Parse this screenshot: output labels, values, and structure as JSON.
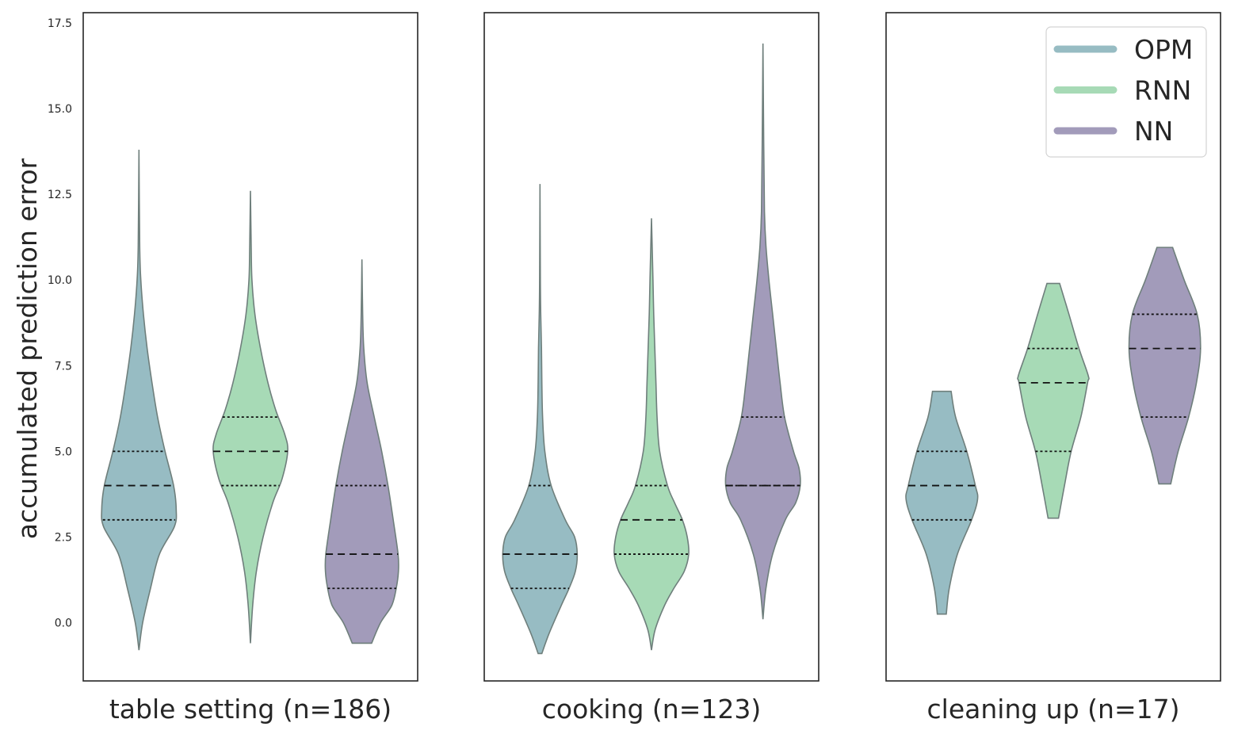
{
  "chart_data": {
    "type": "violin",
    "ylabel": "accumulated prediction error",
    "ylim": [
      -1.7,
      17.8
    ],
    "yticks": [
      "0.0",
      "2.5",
      "5.0",
      "7.5",
      "10.0",
      "12.5",
      "15.0",
      "17.5"
    ],
    "inner": "quartile",
    "shared_y": true,
    "legend": {
      "placement": "top-right",
      "entries": [
        {
          "name": "OPM",
          "color": "#97bcc3"
        },
        {
          "name": "RNN",
          "color": "#a7dab6"
        },
        {
          "name": "NN",
          "color": "#a29bba"
        }
      ]
    },
    "panels": [
      {
        "xlabel": "table setting (n=186)",
        "violins": [
          {
            "series": "OPM",
            "quartiles": [
              3.0,
              4.0,
              5.0
            ],
            "profile": [
              [
                -0.8,
                0.0
              ],
              [
                0.0,
                0.1
              ],
              [
                1.0,
                0.31
              ],
              [
                2.0,
                0.55
              ],
              [
                2.8,
                0.95
              ],
              [
                3.3,
                1.0
              ],
              [
                4.0,
                0.93
              ],
              [
                5.0,
                0.7
              ],
              [
                6.0,
                0.5
              ],
              [
                7.0,
                0.35
              ],
              [
                8.0,
                0.22
              ],
              [
                9.0,
                0.12
              ],
              [
                10.0,
                0.05
              ],
              [
                11.0,
                0.02
              ],
              [
                13.8,
                0.0
              ]
            ]
          },
          {
            "series": "RNN",
            "quartiles": [
              4.0,
              5.0,
              6.0
            ],
            "profile": [
              [
                -0.6,
                0.0
              ],
              [
                0.5,
                0.06
              ],
              [
                1.5,
                0.16
              ],
              [
                2.5,
                0.34
              ],
              [
                3.5,
                0.6
              ],
              [
                4.2,
                0.85
              ],
              [
                5.0,
                1.0
              ],
              [
                5.5,
                0.92
              ],
              [
                6.2,
                0.68
              ],
              [
                7.0,
                0.47
              ],
              [
                8.0,
                0.27
              ],
              [
                9.0,
                0.12
              ],
              [
                10.0,
                0.04
              ],
              [
                11.0,
                0.02
              ],
              [
                12.6,
                0.0
              ]
            ]
          },
          {
            "series": "NN",
            "quartiles": [
              1.0,
              2.0,
              4.0
            ],
            "profile": [
              [
                -0.6,
                0.26
              ],
              [
                0.0,
                0.5
              ],
              [
                0.5,
                0.8
              ],
              [
                1.0,
                0.92
              ],
              [
                1.5,
                0.98
              ],
              [
                2.0,
                0.97
              ],
              [
                3.0,
                0.84
              ],
              [
                4.0,
                0.7
              ],
              [
                5.0,
                0.53
              ],
              [
                6.0,
                0.33
              ],
              [
                7.0,
                0.14
              ],
              [
                8.0,
                0.05
              ],
              [
                9.0,
                0.02
              ],
              [
                10.6,
                0.0
              ]
            ]
          }
        ]
      },
      {
        "xlabel": "cooking (n=123)",
        "violins": [
          {
            "series": "OPM",
            "quartiles": [
              1.0,
              2.0,
              4.0
            ],
            "profile": [
              [
                -0.9,
                0.05
              ],
              [
                -0.3,
                0.25
              ],
              [
                0.5,
                0.57
              ],
              [
                1.0,
                0.78
              ],
              [
                1.5,
                0.95
              ],
              [
                2.0,
                1.0
              ],
              [
                2.5,
                0.93
              ],
              [
                3.0,
                0.68
              ],
              [
                4.0,
                0.3
              ],
              [
                5.0,
                0.13
              ],
              [
                6.0,
                0.07
              ],
              [
                7.0,
                0.05
              ],
              [
                8.0,
                0.04
              ],
              [
                9.0,
                0.02
              ],
              [
                10.0,
                0.01
              ],
              [
                12.8,
                0.0
              ]
            ]
          },
          {
            "series": "RNN",
            "quartiles": [
              2.0,
              3.0,
              4.0
            ],
            "profile": [
              [
                -0.8,
                0.0
              ],
              [
                -0.2,
                0.1
              ],
              [
                0.5,
                0.35
              ],
              [
                1.0,
                0.6
              ],
              [
                1.5,
                0.88
              ],
              [
                2.0,
                1.0
              ],
              [
                2.5,
                0.96
              ],
              [
                3.0,
                0.83
              ],
              [
                3.5,
                0.62
              ],
              [
                4.0,
                0.43
              ],
              [
                5.0,
                0.22
              ],
              [
                6.0,
                0.15
              ],
              [
                7.0,
                0.12
              ],
              [
                8.0,
                0.09
              ],
              [
                9.0,
                0.06
              ],
              [
                10.0,
                0.04
              ],
              [
                11.8,
                0.0
              ]
            ]
          },
          {
            "series": "NN",
            "quartiles": [
              4.0,
              4.0,
              6.0
            ],
            "profile": [
              [
                0.1,
                0.0
              ],
              [
                1.0,
                0.08
              ],
              [
                2.0,
                0.26
              ],
              [
                3.0,
                0.6
              ],
              [
                3.5,
                0.88
              ],
              [
                4.0,
                1.0
              ],
              [
                4.5,
                0.97
              ],
              [
                5.0,
                0.82
              ],
              [
                6.0,
                0.58
              ],
              [
                7.0,
                0.46
              ],
              [
                8.0,
                0.36
              ],
              [
                9.0,
                0.26
              ],
              [
                10.0,
                0.16
              ],
              [
                11.0,
                0.08
              ],
              [
                12.0,
                0.04
              ],
              [
                14.0,
                0.02
              ],
              [
                16.9,
                0.0
              ]
            ]
          }
        ]
      },
      {
        "xlabel": "cleaning up (n=17)",
        "violins": [
          {
            "series": "OPM",
            "quartiles": [
              3.0,
              4.0,
              5.0
            ],
            "profile": [
              [
                0.25,
                0.12
              ],
              [
                1.0,
                0.2
              ],
              [
                2.0,
                0.42
              ],
              [
                3.0,
                0.8
              ],
              [
                3.6,
                0.96
              ],
              [
                4.0,
                0.9
              ],
              [
                5.0,
                0.67
              ],
              [
                6.0,
                0.37
              ],
              [
                6.75,
                0.25
              ]
            ]
          },
          {
            "series": "RNN",
            "quartiles": [
              5.0,
              7.0,
              8.0
            ],
            "profile": [
              [
                3.05,
                0.14
              ],
              [
                4.0,
                0.3
              ],
              [
                5.0,
                0.48
              ],
              [
                6.0,
                0.74
              ],
              [
                7.0,
                0.92
              ],
              [
                7.2,
                0.94
              ],
              [
                8.0,
                0.69
              ],
              [
                9.0,
                0.42
              ],
              [
                9.9,
                0.17
              ]
            ]
          },
          {
            "series": "NN",
            "quartiles": [
              6.0,
              8.0,
              9.0
            ],
            "profile": [
              [
                4.05,
                0.16
              ],
              [
                5.0,
                0.36
              ],
              [
                6.0,
                0.64
              ],
              [
                7.0,
                0.85
              ],
              [
                8.0,
                0.96
              ],
              [
                9.0,
                0.87
              ],
              [
                10.0,
                0.52
              ],
              [
                10.95,
                0.21
              ]
            ]
          }
        ]
      }
    ]
  }
}
